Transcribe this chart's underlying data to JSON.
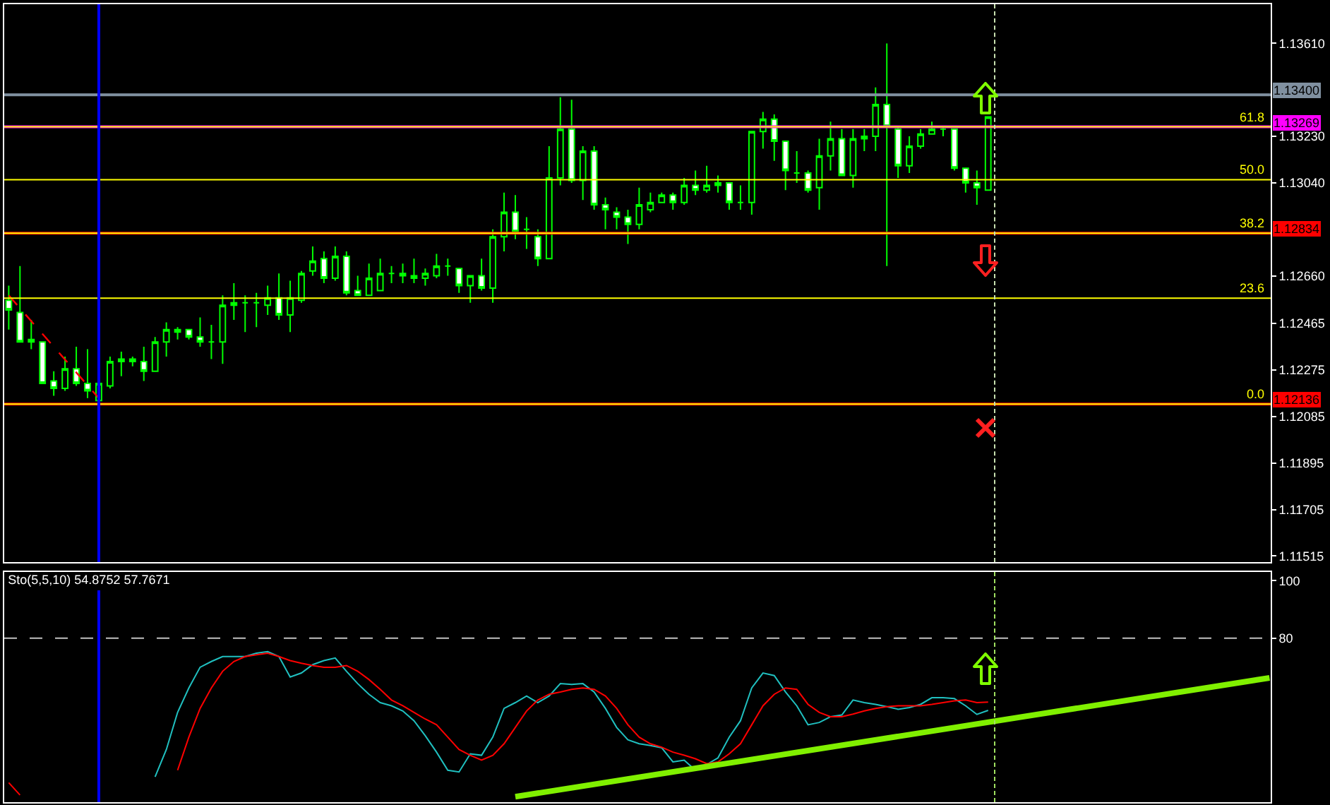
{
  "chart_data": [
    {
      "type": "candlestick",
      "categories": [
        null,
        null,
        null,
        null,
        null,
        null,
        null,
        null,
        null,
        null,
        null,
        null,
        null,
        null,
        null,
        null,
        null,
        null,
        null,
        null,
        null,
        null,
        null,
        null,
        null,
        null,
        null,
        null,
        null,
        null,
        null,
        null,
        null,
        null,
        null,
        null,
        null,
        null,
        null,
        null,
        null,
        null,
        null,
        null,
        null,
        null,
        null,
        null,
        null,
        null,
        null,
        null,
        null,
        null,
        null,
        null,
        null,
        null,
        null,
        null,
        null,
        null,
        null,
        null,
        null,
        null,
        null,
        null,
        null,
        null,
        null,
        null,
        null,
        null,
        null,
        null,
        null,
        null,
        null,
        null,
        null,
        null,
        null,
        null,
        null,
        null,
        null,
        null,
        null,
        null,
        null,
        null,
        null,
        null,
        null,
        null,
        null,
        null,
        null,
        null,
        null,
        null,
        null,
        null,
        null,
        null,
        null,
        null,
        null,
        null,
        null,
        null,
        null
      ],
      "ohlc": [
        [
          1.1256,
          1.1262,
          1.1244,
          1.1252
        ],
        [
          1.1251,
          1.127,
          1.1239,
          1.1239
        ],
        [
          1.124,
          1.1248,
          1.1236,
          1.1239
        ],
        [
          1.1239,
          1.1239,
          1.1222,
          1.1222
        ],
        [
          1.1223,
          1.1227,
          1.1217,
          1.122
        ],
        [
          1.122,
          1.1233,
          1.1219,
          1.1228
        ],
        [
          1.1228,
          1.1237,
          1.1221,
          1.1222
        ],
        [
          1.1222,
          1.1236,
          1.1216,
          1.1219
        ],
        [
          1.1215,
          1.1222,
          1.1214,
          1.1222
        ],
        [
          1.1221,
          1.1233,
          1.122,
          1.1231
        ],
        [
          1.1231,
          1.1235,
          1.1225,
          1.1232
        ],
        [
          1.1232,
          1.1233,
          1.1229,
          1.1231
        ],
        [
          1.1231,
          1.1237,
          1.1223,
          1.1227
        ],
        [
          1.1227,
          1.1241,
          1.1227,
          1.1239
        ],
        [
          1.1239,
          1.1247,
          1.1233,
          1.1244
        ],
        [
          1.1243,
          1.1245,
          1.124,
          1.1244
        ],
        [
          1.1244,
          1.1244,
          1.124,
          1.1241
        ],
        [
          1.1241,
          1.1249,
          1.1237,
          1.1239
        ],
        [
          1.1239,
          1.1246,
          1.1232,
          1.1239
        ],
        [
          1.1239,
          1.1258,
          1.123,
          1.1254
        ],
        [
          1.1254,
          1.1263,
          1.1248,
          1.1255
        ],
        [
          1.1255,
          1.1258,
          1.1243,
          1.1255
        ],
        [
          1.1255,
          1.1259,
          1.1245,
          1.1255
        ],
        [
          1.1254,
          1.1262,
          1.125,
          1.1257
        ],
        [
          1.1257,
          1.1267,
          1.1248,
          1.125
        ],
        [
          1.125,
          1.1264,
          1.1243,
          1.1257
        ],
        [
          1.1256,
          1.1268,
          1.1255,
          1.1267
        ],
        [
          1.1268,
          1.1278,
          1.1266,
          1.1272
        ],
        [
          1.1273,
          1.1276,
          1.1263,
          1.1265
        ],
        [
          1.1265,
          1.1278,
          1.1264,
          1.1274
        ],
        [
          1.1274,
          1.1276,
          1.1258,
          1.1259
        ],
        [
          1.126,
          1.1266,
          1.1258,
          1.1258
        ],
        [
          1.1258,
          1.1271,
          1.1258,
          1.1265
        ],
        [
          1.126,
          1.1273,
          1.126,
          1.1267
        ],
        [
          1.1267,
          1.127,
          1.1263,
          1.1267
        ],
        [
          1.1267,
          1.1271,
          1.1263,
          1.1266
        ],
        [
          1.1266,
          1.1273,
          1.1263,
          1.1265
        ],
        [
          1.1265,
          1.1269,
          1.1262,
          1.1267
        ],
        [
          1.1266,
          1.1275,
          1.1265,
          1.127
        ],
        [
          1.127,
          1.1273,
          1.1266,
          1.127
        ],
        [
          1.1269,
          1.1269,
          1.1259,
          1.1262
        ],
        [
          1.1262,
          1.1266,
          1.1255,
          1.1266
        ],
        [
          1.1266,
          1.1273,
          1.126,
          1.1261
        ],
        [
          1.1261,
          1.1285,
          1.1255,
          1.1282
        ],
        [
          1.1282,
          1.13,
          1.1276,
          1.1292
        ],
        [
          1.1292,
          1.1299,
          1.1281,
          1.1284
        ],
        [
          1.1285,
          1.129,
          1.1277,
          1.1285
        ],
        [
          1.1282,
          1.1285,
          1.127,
          1.1273
        ],
        [
          1.1273,
          1.1319,
          1.1273,
          1.1306
        ],
        [
          1.1306,
          1.1339,
          1.1303,
          1.1326
        ],
        [
          1.1326,
          1.1338,
          1.1304,
          1.1305
        ],
        [
          1.1305,
          1.1319,
          1.1297,
          1.1317
        ],
        [
          1.1317,
          1.1319,
          1.1293,
          1.1295
        ],
        [
          1.1295,
          1.1298,
          1.1285,
          1.1293
        ],
        [
          1.1292,
          1.1294,
          1.1285,
          1.129
        ],
        [
          1.129,
          1.1293,
          1.1279,
          1.1287
        ],
        [
          1.1287,
          1.1302,
          1.1285,
          1.1295
        ],
        [
          1.1293,
          1.13,
          1.1292,
          1.1296
        ],
        [
          1.1296,
          1.13,
          1.1296,
          1.1299
        ],
        [
          1.1299,
          1.13,
          1.1293,
          1.1296
        ],
        [
          1.1296,
          1.1306,
          1.1295,
          1.1303
        ],
        [
          1.1303,
          1.1309,
          1.1299,
          1.1301
        ],
        [
          1.1301,
          1.1311,
          1.13,
          1.1303
        ],
        [
          1.1303,
          1.1307,
          1.13,
          1.1304
        ],
        [
          1.1304,
          1.1304,
          1.1293,
          1.1296
        ],
        [
          1.1296,
          1.1303,
          1.1293,
          1.1296
        ],
        [
          1.1296,
          1.1325,
          1.1291,
          1.1325
        ],
        [
          1.1325,
          1.1333,
          1.1318,
          1.133
        ],
        [
          1.133,
          1.1332,
          1.1313,
          1.1321
        ],
        [
          1.1321,
          1.1321,
          1.1301,
          1.1309
        ],
        [
          1.1308,
          1.1317,
          1.1304,
          1.1308
        ],
        [
          1.1308,
          1.1309,
          1.13,
          1.1301
        ],
        [
          1.1302,
          1.1322,
          1.1293,
          1.1315
        ],
        [
          1.1315,
          1.1329,
          1.1309,
          1.1322
        ],
        [
          1.1322,
          1.1326,
          1.1307,
          1.1307
        ],
        [
          1.1307,
          1.1326,
          1.1302,
          1.1322
        ],
        [
          1.1322,
          1.1326,
          1.1317,
          1.1323
        ],
        [
          1.1323,
          1.1343,
          1.1317,
          1.1336
        ],
        [
          1.1336,
          1.1361,
          1.127,
          1.1327
        ],
        [
          1.1326,
          1.1327,
          1.1306,
          1.1311
        ],
        [
          1.1311,
          1.1323,
          1.1308,
          1.1319
        ],
        [
          1.1319,
          1.1326,
          1.1318,
          1.1324
        ],
        [
          1.1324,
          1.1329,
          1.1324,
          1.1326
        ],
        [
          1.1326,
          1.1327,
          1.1323,
          1.1326
        ],
        [
          1.1326,
          1.1326,
          1.1309,
          1.131
        ],
        [
          1.131,
          1.131,
          1.13,
          1.1304
        ],
        [
          1.1304,
          1.1309,
          1.1295,
          1.1302
        ],
        [
          1.1301,
          1.1331,
          1.1301,
          1.1331
        ],
        null,
        null,
        null,
        null,
        null,
        null,
        null,
        null,
        null,
        null,
        null,
        null,
        null,
        null,
        null,
        null,
        null,
        null,
        null,
        null,
        null,
        null,
        null,
        null,
        null
      ],
      "series": [
        {
          "type": "line",
          "color": "#ff0000",
          "line_style": "dashed",
          "values": [
            1.1258,
            null,
            null,
            null,
            null,
            null,
            null,
            null,
            1.1216,
            null,
            null,
            null,
            null,
            null,
            null,
            null,
            null,
            null,
            null,
            null,
            null,
            null,
            null,
            null,
            null,
            null,
            null,
            null,
            null,
            null,
            null,
            null,
            null,
            null,
            null,
            null,
            null,
            null,
            null,
            null,
            null,
            null,
            null,
            null,
            null,
            null,
            null,
            null,
            null,
            null,
            null,
            null,
            null,
            null,
            null,
            null,
            null,
            null,
            null,
            null,
            null,
            null,
            null,
            null,
            null,
            null,
            null,
            null,
            null,
            null,
            null,
            null,
            null,
            null,
            null,
            null,
            null,
            null,
            null,
            null,
            null,
            null,
            null,
            null,
            null,
            null,
            null,
            null,
            null,
            null,
            null,
            null,
            null,
            null,
            null,
            null,
            null,
            null,
            null,
            null,
            null,
            null,
            null,
            null,
            null,
            null,
            null,
            null,
            null,
            null,
            null,
            null,
            null
          ]
        }
      ],
      "ylim": [
        1.1149,
        1.1377
      ],
      "yticks": [
        {
          "value": 1.11515,
          "label": "1.11515"
        },
        {
          "value": 1.11705,
          "label": "1.11705"
        },
        {
          "value": 1.11895,
          "label": "1.11895"
        },
        {
          "value": 1.12085,
          "label": "1.12085"
        },
        {
          "value": 1.12275,
          "label": "1.12275"
        },
        {
          "value": 1.12465,
          "label": "1.12465"
        },
        {
          "value": 1.1266,
          "label": "1.12660"
        },
        {
          "value": 1.1304,
          "label": "1.13040"
        },
        {
          "value": 1.1323,
          "label": "1.13230"
        },
        {
          "value": 1.1361,
          "label": "1.13610"
        }
      ],
      "tick_labels": "y",
      "grid": false,
      "ref_lines": [
        {
          "axis": "y",
          "value": 1.134,
          "label": "1.13400",
          "color": "#8090a0"
        },
        {
          "axis": "y",
          "value": 1.13269,
          "label": "1.13269",
          "color": "#ff00ff"
        },
        {
          "axis": "y",
          "value": 1.13269,
          "color": "#ffff00"
        },
        {
          "axis": "y",
          "value": 1.13053,
          "color": "#ffff00"
        },
        {
          "axis": "y",
          "value": 1.12834,
          "label": "1.12834",
          "color": "#ff0000"
        },
        {
          "axis": "y",
          "value": 1.12834,
          "color": "#ffff00"
        },
        {
          "axis": "y",
          "value": 1.12569,
          "color": "#ffff00"
        },
        {
          "axis": "y",
          "value": 1.12136,
          "label": "1.12136",
          "color": "#ff0000"
        },
        {
          "axis": "y",
          "value": 1.12136,
          "color": "#ffff00"
        }
      ],
      "annotations": [
        {
          "text": "61.8",
          "y": 1.13269
        },
        {
          "text": "50.0",
          "y": 1.13053
        },
        {
          "text": "38.2",
          "y": 1.12834
        },
        {
          "text": "23.6",
          "y": 1.12569
        },
        {
          "text": "0.0",
          "y": 1.12136
        }
      ]
    },
    {
      "type": "line",
      "title": "Sto(5,5,10) 54.8752 57.7671",
      "categories": [
        null,
        null,
        null,
        null,
        null,
        null,
        null,
        null,
        null,
        null,
        null,
        null,
        null,
        null,
        null,
        null,
        null,
        null,
        null,
        null,
        null,
        null,
        null,
        null,
        null,
        null,
        null,
        null,
        null,
        null,
        null,
        null,
        null,
        null,
        null,
        null,
        null,
        null,
        null,
        null,
        null,
        null,
        null,
        null,
        null,
        null,
        null,
        null,
        null,
        null,
        null,
        null,
        null,
        null,
        null,
        null,
        null,
        null,
        null,
        null,
        null,
        null,
        null,
        null,
        null,
        null,
        null,
        null,
        null,
        null,
        null,
        null,
        null,
        null,
        null,
        null,
        null,
        null,
        null,
        null,
        null,
        null,
        null,
        null,
        null,
        null,
        null,
        null,
        null,
        null,
        null,
        null,
        null,
        null,
        null,
        null,
        null,
        null,
        null,
        null,
        null,
        null,
        null,
        null,
        null,
        null,
        null,
        null,
        null,
        null,
        null,
        null,
        null
      ],
      "series": [
        {
          "color": "#20c0c0",
          "values": [
            null,
            null,
            null,
            null,
            null,
            null,
            null,
            null,
            null,
            null,
            null,
            null,
            null,
            31.8,
            41.3,
            54.2,
            62.7,
            69.9,
            71.9,
            73.6,
            73.6,
            73.6,
            74.8,
            75.3,
            73.6,
            66.5,
            67.9,
            70.8,
            72.2,
            73.1,
            68.5,
            64.2,
            60.5,
            57.6,
            56.5,
            54.7,
            51.3,
            46.1,
            40.4,
            34.1,
            33.5,
            39.8,
            39.3,
            45.6,
            55.6,
            57.6,
            59.9,
            57.6,
            59.9,
            64.2,
            63.9,
            64.2,
            61.3,
            55.6,
            49.0,
            44.7,
            43.3,
            42.7,
            41.9,
            37.0,
            37.6,
            34.1,
            36.1,
            38.4,
            45.6,
            51.3,
            62.7,
            67.9,
            67.0,
            61.3,
            56.5,
            49.9,
            50.7,
            52.7,
            53.3,
            58.5,
            57.6,
            57.0,
            56.2,
            55.3,
            55.9,
            57.0,
            59.3,
            59.3,
            59.0,
            56.5,
            53.5,
            54.9,
            null,
            null,
            null,
            null,
            null,
            null,
            null,
            null,
            null,
            null,
            null,
            null,
            null,
            null,
            null,
            null,
            null,
            null,
            null,
            null,
            null,
            null,
            null,
            null,
            null
          ]
        },
        {
          "color": "#ff0000",
          "values": [
            29.8,
            25.5,
            null,
            null,
            null,
            null,
            null,
            null,
            null,
            null,
            null,
            null,
            null,
            null,
            null,
            34.1,
            45.6,
            55.6,
            62.7,
            68.5,
            71.9,
            73.6,
            74.2,
            74.8,
            73.6,
            72.2,
            71.3,
            70.5,
            69.9,
            69.9,
            70.5,
            68.5,
            65.6,
            62.2,
            58.5,
            56.5,
            54.2,
            51.9,
            49.9,
            45.6,
            41.3,
            39.3,
            37.6,
            39.3,
            43.3,
            49.0,
            54.7,
            58.5,
            60.5,
            61.3,
            62.2,
            62.7,
            62.2,
            59.9,
            55.6,
            49.9,
            45.6,
            43.3,
            42.1,
            40.4,
            39.3,
            38.1,
            36.4,
            37.0,
            39.8,
            43.3,
            49.9,
            56.5,
            60.5,
            62.7,
            62.2,
            57.0,
            54.2,
            52.7,
            52.7,
            53.6,
            54.7,
            55.6,
            56.2,
            56.5,
            56.5,
            56.5,
            57.0,
            57.6,
            58.2,
            58.5,
            57.6,
            57.8,
            null,
            null,
            null,
            null,
            null,
            null,
            null,
            null,
            null,
            null,
            null,
            null,
            null,
            null,
            null,
            null,
            null,
            null,
            null,
            null,
            null,
            null,
            null,
            null,
            null
          ]
        },
        {
          "color": "#80f000",
          "values": [
            null,
            null,
            null,
            null,
            null,
            null,
            null,
            null,
            null,
            null,
            null,
            null,
            null,
            null,
            null,
            null,
            null,
            null,
            null,
            null,
            null,
            null,
            null,
            null,
            null,
            null,
            null,
            null,
            null,
            null,
            null,
            null,
            null,
            null,
            null,
            null,
            null,
            null,
            null,
            null,
            null,
            null,
            null,
            null,
            null,
            24.9,
            null,
            null,
            null,
            null,
            null,
            null,
            null,
            null,
            null,
            null,
            null,
            null,
            null,
            null,
            null,
            null,
            null,
            null,
            null,
            null,
            null,
            null,
            null,
            null,
            null,
            null,
            null,
            null,
            null,
            null,
            null,
            null,
            null,
            null,
            null,
            null,
            null,
            null,
            null,
            null,
            null,
            null,
            null,
            null,
            null,
            null,
            null,
            null,
            null,
            null,
            null,
            null,
            null,
            null,
            null,
            null,
            null,
            null,
            null,
            null,
            null,
            null,
            null,
            null,
            null,
            null,
            66.2
          ]
        }
      ],
      "ylim": [
        23,
        103
      ],
      "yticks": [
        100,
        80
      ],
      "tick_labels": "y",
      "grid": false,
      "ref_lines": [
        {
          "axis": "y",
          "value": 80,
          "color": "#c0c0c0",
          "line_style": "dashed"
        }
      ]
    }
  ]
}
